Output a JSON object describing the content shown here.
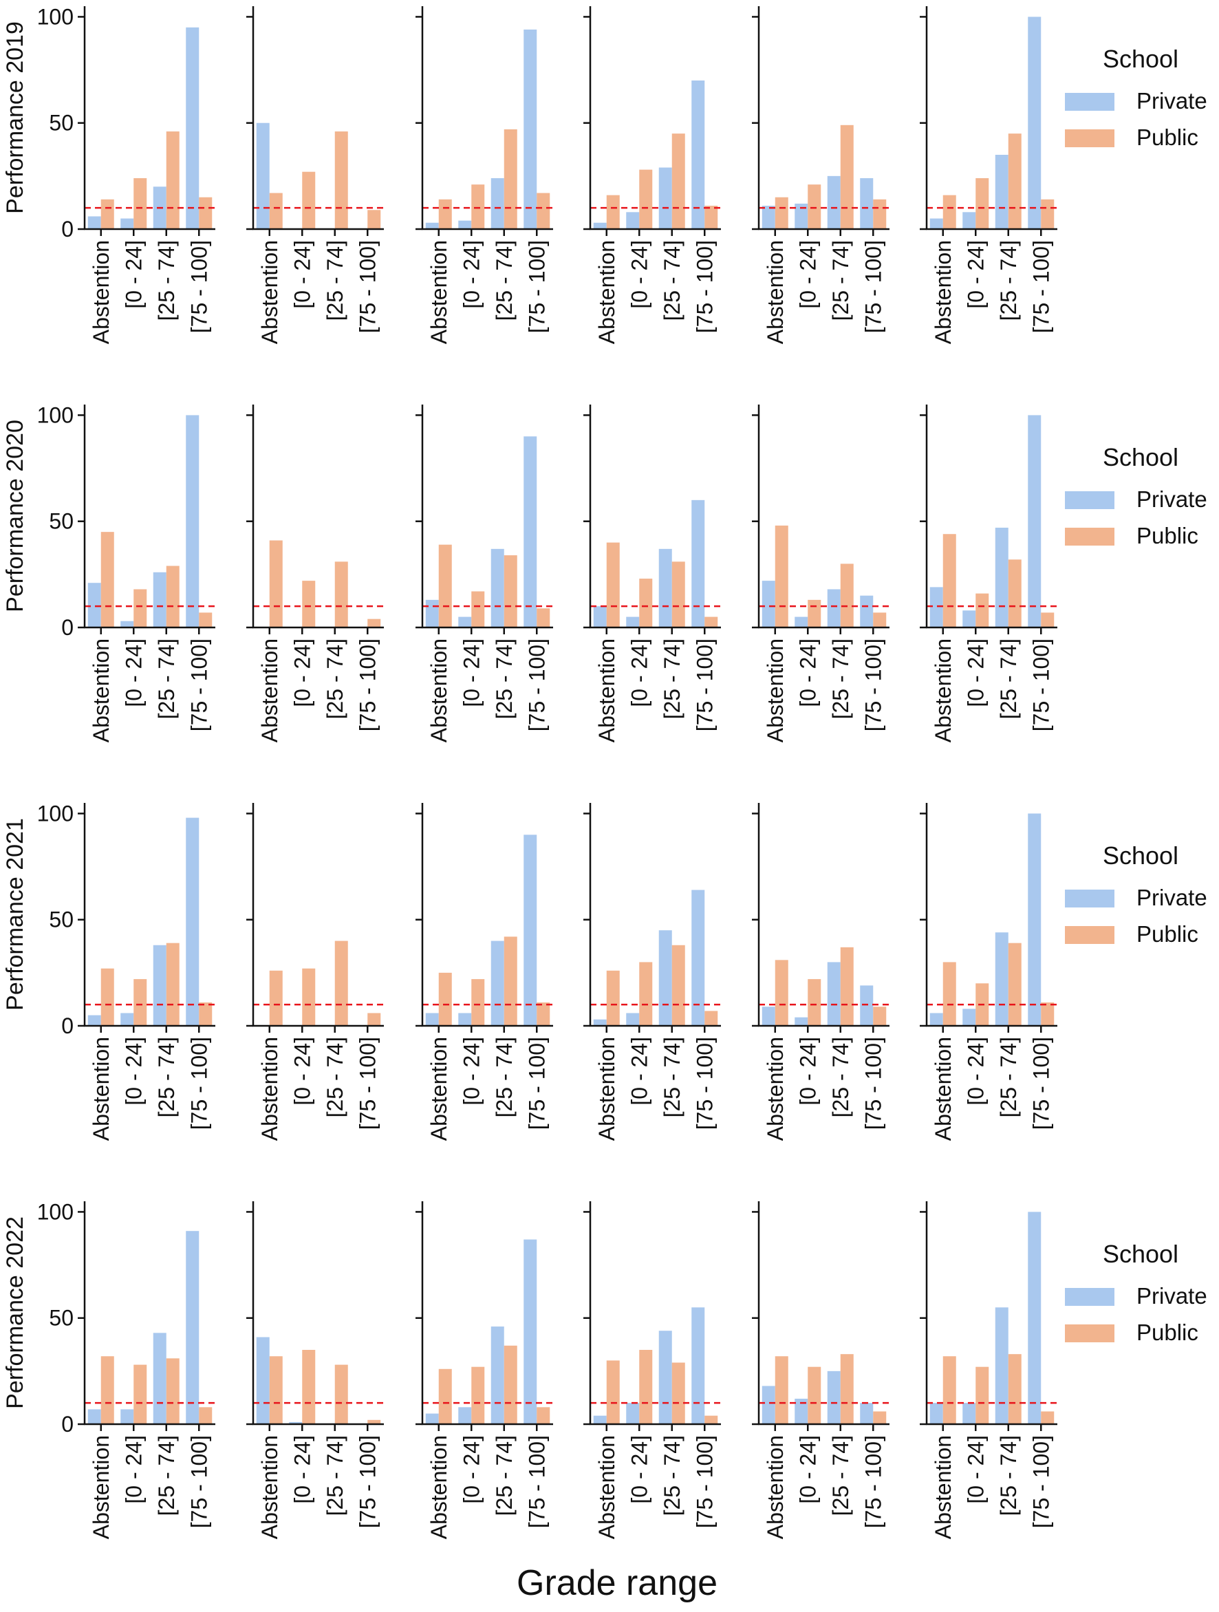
{
  "chart_data": {
    "type": "bar",
    "title": "",
    "xlabel": "Grade range",
    "categories": [
      "Abstention",
      "[0 - 24]",
      "[25 - 74]",
      "[75 - 100]"
    ],
    "ylim": [
      0,
      105
    ],
    "yticks": [
      0,
      50,
      100
    ],
    "reference_line": {
      "value": 10,
      "style": "dashed",
      "color": "#e8141b"
    },
    "legend": {
      "title": "School",
      "entries": [
        "Private",
        "Public"
      ],
      "position": "right of each row"
    },
    "colors": {
      "Private": "#a9c8ee",
      "Public": "#f2b48e",
      "axis": "#111111"
    },
    "rows": [
      {
        "ylabel": "Performance 2019",
        "panels": [
          {
            "series": [
              {
                "name": "Private",
                "values": [
                  6,
                  5,
                  20,
                  95
                ]
              },
              {
                "name": "Public",
                "values": [
                  14,
                  24,
                  46,
                  15
                ]
              }
            ]
          },
          {
            "series": [
              {
                "name": "Private",
                "values": [
                  50,
                  0,
                  0,
                  0
                ]
              },
              {
                "name": "Public",
                "values": [
                  17,
                  27,
                  46,
                  9
                ]
              }
            ]
          },
          {
            "series": [
              {
                "name": "Private",
                "values": [
                  3,
                  4,
                  24,
                  94
                ]
              },
              {
                "name": "Public",
                "values": [
                  14,
                  21,
                  47,
                  17
                ]
              }
            ]
          },
          {
            "series": [
              {
                "name": "Private",
                "values": [
                  3,
                  8,
                  29,
                  70
                ]
              },
              {
                "name": "Public",
                "values": [
                  16,
                  28,
                  45,
                  11
                ]
              }
            ]
          },
          {
            "series": [
              {
                "name": "Private",
                "values": [
                  11,
                  12,
                  25,
                  24
                ]
              },
              {
                "name": "Public",
                "values": [
                  15,
                  21,
                  49,
                  14
                ]
              }
            ]
          },
          {
            "series": [
              {
                "name": "Private",
                "values": [
                  5,
                  8,
                  35,
                  100
                ]
              },
              {
                "name": "Public",
                "values": [
                  16,
                  24,
                  45,
                  14
                ]
              }
            ]
          }
        ]
      },
      {
        "ylabel": "Performance 2020",
        "panels": [
          {
            "series": [
              {
                "name": "Private",
                "values": [
                  21,
                  3,
                  26,
                  100
                ]
              },
              {
                "name": "Public",
                "values": [
                  45,
                  18,
                  29,
                  7
                ]
              }
            ]
          },
          {
            "series": [
              {
                "name": "Private",
                "values": [
                  0,
                  0,
                  0,
                  0
                ]
              },
              {
                "name": "Public",
                "values": [
                  41,
                  22,
                  31,
                  4
                ]
              }
            ]
          },
          {
            "series": [
              {
                "name": "Private",
                "values": [
                  13,
                  5,
                  37,
                  90
                ]
              },
              {
                "name": "Public",
                "values": [
                  39,
                  17,
                  34,
                  9
                ]
              }
            ]
          },
          {
            "series": [
              {
                "name": "Private",
                "values": [
                  10,
                  5,
                  37,
                  60
                ]
              },
              {
                "name": "Public",
                "values": [
                  40,
                  23,
                  31,
                  5
                ]
              }
            ]
          },
          {
            "series": [
              {
                "name": "Private",
                "values": [
                  22,
                  5,
                  18,
                  15
                ]
              },
              {
                "name": "Public",
                "values": [
                  48,
                  13,
                  30,
                  7
                ]
              }
            ]
          },
          {
            "series": [
              {
                "name": "Private",
                "values": [
                  19,
                  8,
                  47,
                  100
                ]
              },
              {
                "name": "Public",
                "values": [
                  44,
                  16,
                  32,
                  7
                ]
              }
            ]
          }
        ]
      },
      {
        "ylabel": "Performance 2021",
        "panels": [
          {
            "series": [
              {
                "name": "Private",
                "values": [
                  5,
                  6,
                  38,
                  98
                ]
              },
              {
                "name": "Public",
                "values": [
                  27,
                  22,
                  39,
                  11
                ]
              }
            ]
          },
          {
            "series": [
              {
                "name": "Private",
                "values": [
                  0,
                  0,
                  0,
                  0
                ]
              },
              {
                "name": "Public",
                "values": [
                  26,
                  27,
                  40,
                  6
                ]
              }
            ]
          },
          {
            "series": [
              {
                "name": "Private",
                "values": [
                  6,
                  6,
                  40,
                  90
                ]
              },
              {
                "name": "Public",
                "values": [
                  25,
                  22,
                  42,
                  11
                ]
              }
            ]
          },
          {
            "series": [
              {
                "name": "Private",
                "values": [
                  3,
                  6,
                  45,
                  64
                ]
              },
              {
                "name": "Public",
                "values": [
                  26,
                  30,
                  38,
                  7
                ]
              }
            ]
          },
          {
            "series": [
              {
                "name": "Private",
                "values": [
                  9,
                  4,
                  30,
                  19
                ]
              },
              {
                "name": "Public",
                "values": [
                  31,
                  22,
                  37,
                  9
                ]
              }
            ]
          },
          {
            "series": [
              {
                "name": "Private",
                "values": [
                  6,
                  8,
                  44,
                  100
                ]
              },
              {
                "name": "Public",
                "values": [
                  30,
                  20,
                  39,
                  11
                ]
              }
            ]
          }
        ]
      },
      {
        "ylabel": "Performance 2022",
        "panels": [
          {
            "series": [
              {
                "name": "Private",
                "values": [
                  7,
                  7,
                  43,
                  91
                ]
              },
              {
                "name": "Public",
                "values": [
                  32,
                  28,
                  31,
                  8
                ]
              }
            ]
          },
          {
            "series": [
              {
                "name": "Private",
                "values": [
                  41,
                  1,
                  0,
                  0
                ]
              },
              {
                "name": "Public",
                "values": [
                  32,
                  35,
                  28,
                  2
                ]
              }
            ]
          },
          {
            "series": [
              {
                "name": "Private",
                "values": [
                  5,
                  8,
                  46,
                  87
                ]
              },
              {
                "name": "Public",
                "values": [
                  26,
                  27,
                  37,
                  8
                ]
              }
            ]
          },
          {
            "series": [
              {
                "name": "Private",
                "values": [
                  4,
                  10,
                  44,
                  55
                ]
              },
              {
                "name": "Public",
                "values": [
                  30,
                  35,
                  29,
                  4
                ]
              }
            ]
          },
          {
            "series": [
              {
                "name": "Private",
                "values": [
                  18,
                  12,
                  25,
                  10
                ]
              },
              {
                "name": "Public",
                "values": [
                  32,
                  27,
                  33,
                  6
                ]
              }
            ]
          },
          {
            "series": [
              {
                "name": "Private",
                "values": [
                  10,
                  10,
                  55,
                  100
                ]
              },
              {
                "name": "Public",
                "values": [
                  32,
                  27,
                  33,
                  6
                ]
              }
            ]
          }
        ]
      }
    ]
  }
}
